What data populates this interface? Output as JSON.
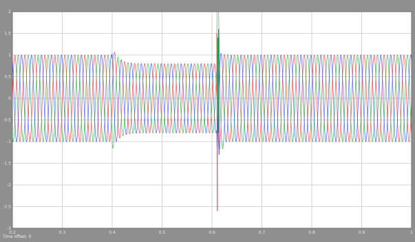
{
  "scope": {
    "offset_label": "Time offset: 0",
    "axes_background": "#ffffff",
    "window_background": "#8f8f8f",
    "grid_color": "#c8c8c8"
  },
  "chart_data": {
    "type": "line",
    "title": "",
    "xlabel": "",
    "ylabel": "",
    "xlim": [
      0.2,
      1.0
    ],
    "ylim": [
      -3,
      2
    ],
    "grid": true,
    "x_ticks": [
      "0.2",
      "0.3",
      "0.4",
      "0.5",
      "0.6",
      "0.7",
      "0.8",
      "0.9",
      "1"
    ],
    "y_ticks": [
      "2",
      "1.5",
      "1",
      "0.5",
      "0",
      "-0.5",
      "-1",
      "-1.5",
      "-2",
      "-2.5",
      "-3"
    ],
    "frequency_hz": 50,
    "series": [
      {
        "color": "#ff2a2a",
        "phase_deg": 0
      },
      {
        "color": "#1faa3a",
        "phase_deg": -120
      },
      {
        "color": "#2a3aff",
        "phase_deg": 120
      }
    ],
    "segments": [
      {
        "t_start": 0.2,
        "t_end": 0.4,
        "amplitude": 1.0
      },
      {
        "t_start": 0.4,
        "t_end": 0.61,
        "amplitude": 0.8,
        "transient_peak": 1.2
      },
      {
        "t_start": 0.61,
        "t_end": 1.0,
        "amplitude": 1.0,
        "transient_peak": 1.6,
        "transient_min": -2.6
      }
    ]
  }
}
